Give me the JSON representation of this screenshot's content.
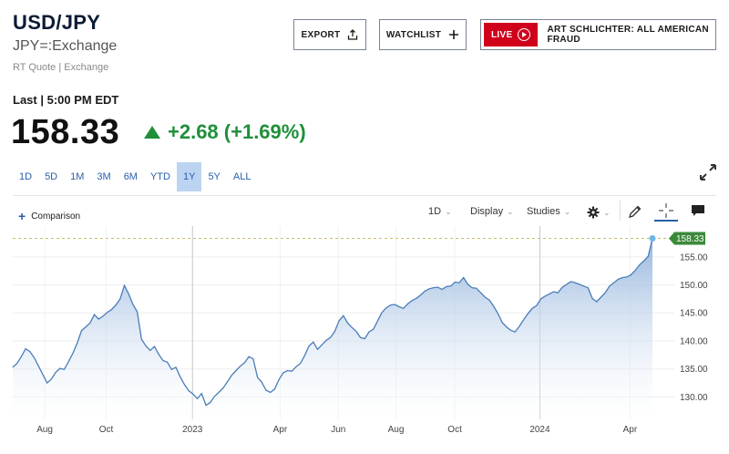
{
  "header": {
    "title": "USD/JPY",
    "subtitle": "JPY=:Exchange",
    "quote_info": "RT Quote | Exchange"
  },
  "buttons": {
    "export": "EXPORT",
    "watchlist": "WATCHLIST",
    "live_badge": "LIVE",
    "live_promo": "ART SCHLICHTER: ALL AMERICAN FRAUD"
  },
  "quote": {
    "last_label": "Last | 5:00 PM EDT",
    "price": "158.33",
    "change": "+2.68 (+1.69%)"
  },
  "ranges": [
    "1D",
    "5D",
    "1M",
    "3M",
    "6M",
    "YTD",
    "1Y",
    "5Y",
    "ALL"
  ],
  "active_range": "1Y",
  "toolbar": {
    "comparison": "Comparison",
    "interval": "1D",
    "display": "Display",
    "studies": "Studies"
  },
  "colors": {
    "accent": "#2a5ea8",
    "up": "#1f8f3a",
    "live": "#d0021b",
    "line": "#4a7db8",
    "last_marker": "#3a8a3a"
  },
  "chart_data": {
    "type": "area",
    "title": "",
    "xlabel": "",
    "ylabel": "",
    "x_ticks": [
      "Aug",
      "Oct",
      "2023",
      "Apr",
      "Jun",
      "Aug",
      "Oct",
      "2024",
      "Apr"
    ],
    "y_ticks": [
      130.0,
      135.0,
      140.0,
      145.0,
      150.0,
      155.0
    ],
    "y_tick_labels": [
      "130.00",
      "135.00",
      "140.00",
      "145.00",
      "150.00",
      "155.00"
    ],
    "ylim": [
      126.0,
      160.5
    ],
    "last_value_label": "158.33",
    "series": [
      {
        "values": [
          135.3,
          136.0,
          137.2,
          138.6,
          138.1,
          137.0,
          135.5,
          134.0,
          132.5,
          133.2,
          134.4,
          135.1,
          134.9,
          136.3,
          137.8,
          139.6,
          141.8,
          142.5,
          143.2,
          144.7,
          143.9,
          144.4,
          145.1,
          145.6,
          146.4,
          147.5,
          149.9,
          148.4,
          146.5,
          145.2,
          140.3,
          139.1,
          138.3,
          139.0,
          137.6,
          136.5,
          136.2,
          134.9,
          135.3,
          133.6,
          132.2,
          131.1,
          130.5,
          129.7,
          130.6,
          128.5,
          129.0,
          130.1,
          130.8,
          131.6,
          132.7,
          133.9,
          134.7,
          135.5,
          136.1,
          137.2,
          136.8,
          133.5,
          132.6,
          131.2,
          130.8,
          131.4,
          133.1,
          134.3,
          134.7,
          134.6,
          135.4,
          136.0,
          137.4,
          139.1,
          139.8,
          138.5,
          139.3,
          140.1,
          140.6,
          141.7,
          143.6,
          144.5,
          143.2,
          142.4,
          141.7,
          140.6,
          140.4,
          141.6,
          142.1,
          143.6,
          145.1,
          145.9,
          146.4,
          146.5,
          146.1,
          145.8,
          146.6,
          147.2,
          147.6,
          148.2,
          148.9,
          149.3,
          149.5,
          149.6,
          149.2,
          149.7,
          149.8,
          150.5,
          150.4,
          151.3,
          150.1,
          149.5,
          149.4,
          148.6,
          147.8,
          147.3,
          146.2,
          144.9,
          143.3,
          142.5,
          141.9,
          141.6,
          142.6,
          143.8,
          144.9,
          145.8,
          146.3,
          147.5,
          148.0,
          148.4,
          148.8,
          148.6,
          149.6,
          150.1,
          150.6,
          150.4,
          150.1,
          149.8,
          149.5,
          147.6,
          147.0,
          147.8,
          148.6,
          149.8,
          150.4,
          151.0,
          151.3,
          151.4,
          151.8,
          152.6,
          153.6,
          154.3,
          155.1,
          158.3
        ]
      }
    ]
  }
}
